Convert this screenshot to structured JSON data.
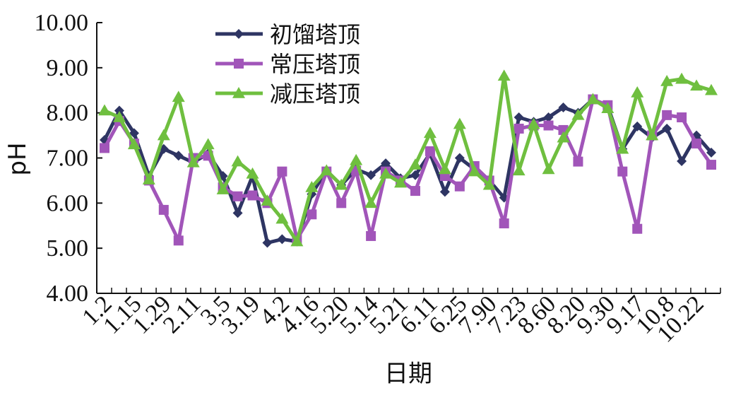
{
  "chart_data": {
    "type": "line",
    "xlabel": "日期",
    "ylabel": "pH",
    "ylim": [
      4,
      10
    ],
    "yticks": [
      "4.00",
      "5.00",
      "6.00",
      "7.00",
      "8.00",
      "9.00",
      "10.00"
    ],
    "grid": false,
    "legend_position": "top-center",
    "xtick_labels": [
      "1.2",
      "1.15",
      "1.29",
      "2.11",
      "3.5",
      "3.19",
      "4.2",
      "4.16",
      "5.20",
      "5.14",
      "5.21",
      "6.11",
      "6.25",
      "7.90",
      "7.23",
      "8.60",
      "8.20",
      "9.30",
      "9.17",
      "10.8",
      "10.22"
    ],
    "x_count": 42,
    "series": [
      {
        "name": "初馏塔顶",
        "color": "#2e3563",
        "marker": "diamond",
        "values": [
          7.4,
          8.05,
          7.55,
          6.6,
          7.2,
          7.05,
          6.9,
          7.1,
          6.6,
          5.78,
          6.6,
          5.12,
          5.2,
          5.15,
          6.2,
          6.72,
          6.4,
          6.75,
          6.62,
          6.88,
          6.55,
          6.62,
          7.1,
          6.25,
          7.0,
          6.75,
          6.5,
          6.12,
          7.9,
          7.8,
          7.9,
          8.12,
          8.0,
          8.3,
          8.15,
          7.2,
          7.7,
          7.45,
          7.65,
          6.93,
          7.5,
          7.12
        ]
      },
      {
        "name": "常压塔顶",
        "color": "#a155b9",
        "marker": "square",
        "values": [
          7.22,
          7.82,
          7.32,
          6.5,
          5.85,
          5.17,
          7.0,
          7.05,
          6.35,
          6.15,
          6.17,
          6.0,
          6.7,
          5.2,
          5.75,
          6.7,
          6.0,
          6.72,
          5.27,
          6.7,
          6.5,
          6.27,
          7.15,
          6.6,
          6.37,
          6.82,
          6.5,
          5.55,
          7.65,
          7.72,
          7.72,
          7.62,
          6.92,
          8.3,
          8.17,
          6.7,
          5.43,
          7.5,
          7.95,
          7.9,
          7.32,
          6.85
        ]
      },
      {
        "name": "减压塔顶",
        "color": "#6fbf3f",
        "marker": "triangle",
        "values": [
          8.05,
          7.9,
          7.3,
          6.52,
          7.5,
          8.35,
          6.9,
          7.3,
          6.3,
          6.92,
          6.65,
          6.05,
          5.65,
          5.15,
          6.35,
          6.72,
          6.4,
          6.95,
          6.0,
          6.65,
          6.45,
          6.85,
          7.55,
          6.75,
          7.75,
          6.7,
          6.4,
          8.82,
          6.72,
          7.75,
          6.75,
          7.45,
          7.95,
          8.3,
          8.1,
          7.2,
          8.45,
          7.5,
          8.7,
          8.75,
          8.6,
          8.5
        ]
      }
    ]
  }
}
